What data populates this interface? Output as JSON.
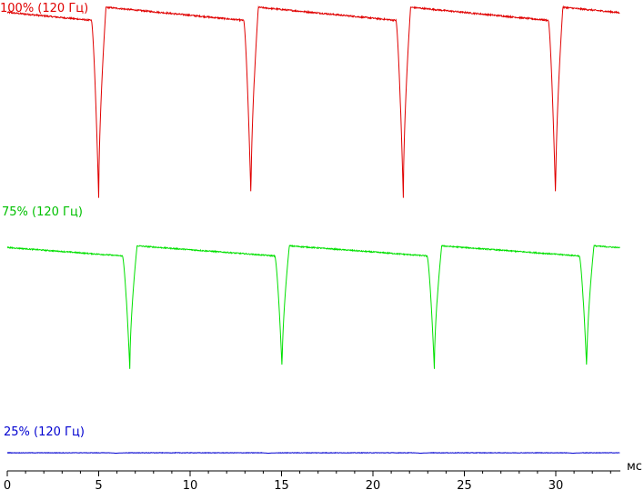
{
  "chart_data": {
    "type": "line",
    "xlabel": "мс",
    "xlim": [
      0,
      33.5
    ],
    "x_ticks": [
      0,
      5,
      10,
      15,
      20,
      25,
      30
    ],
    "x_tick_labels": [
      "0",
      "5",
      "10",
      "15",
      "20",
      "25",
      "30"
    ],
    "grid": false,
    "legend": "inline labels above each trace",
    "series": [
      {
        "name": "100% (120 Гц)",
        "color": "#e00000",
        "period_ms": 8.33,
        "first_dip_ms": 5.0,
        "dip_start_offset_ms": -0.4,
        "recover_ms": 0.4,
        "levels": {
          "peak": 1.0,
          "pre_dip": 0.945,
          "dip_min": 0.2
        }
      },
      {
        "name": "75% (120 Гц)",
        "color": "#00e000",
        "period_ms": 8.33,
        "first_dip_ms": 6.7,
        "dip_start_offset_ms": -0.4,
        "recover_ms": 0.4,
        "levels": {
          "peak": 0.79,
          "pre_dip": 0.735,
          "dip_min": 0.12
        }
      },
      {
        "name": "25% (120 Гц)",
        "color": "#0000d0",
        "period_ms": 8.33,
        "first_dip_ms": 5.95,
        "dip_start_offset_ms": -0.35,
        "recover_ms": 0.5,
        "levels": {
          "peak": 0.055,
          "pre_dip": 0.055,
          "dip_min": 0.04
        }
      }
    ]
  }
}
